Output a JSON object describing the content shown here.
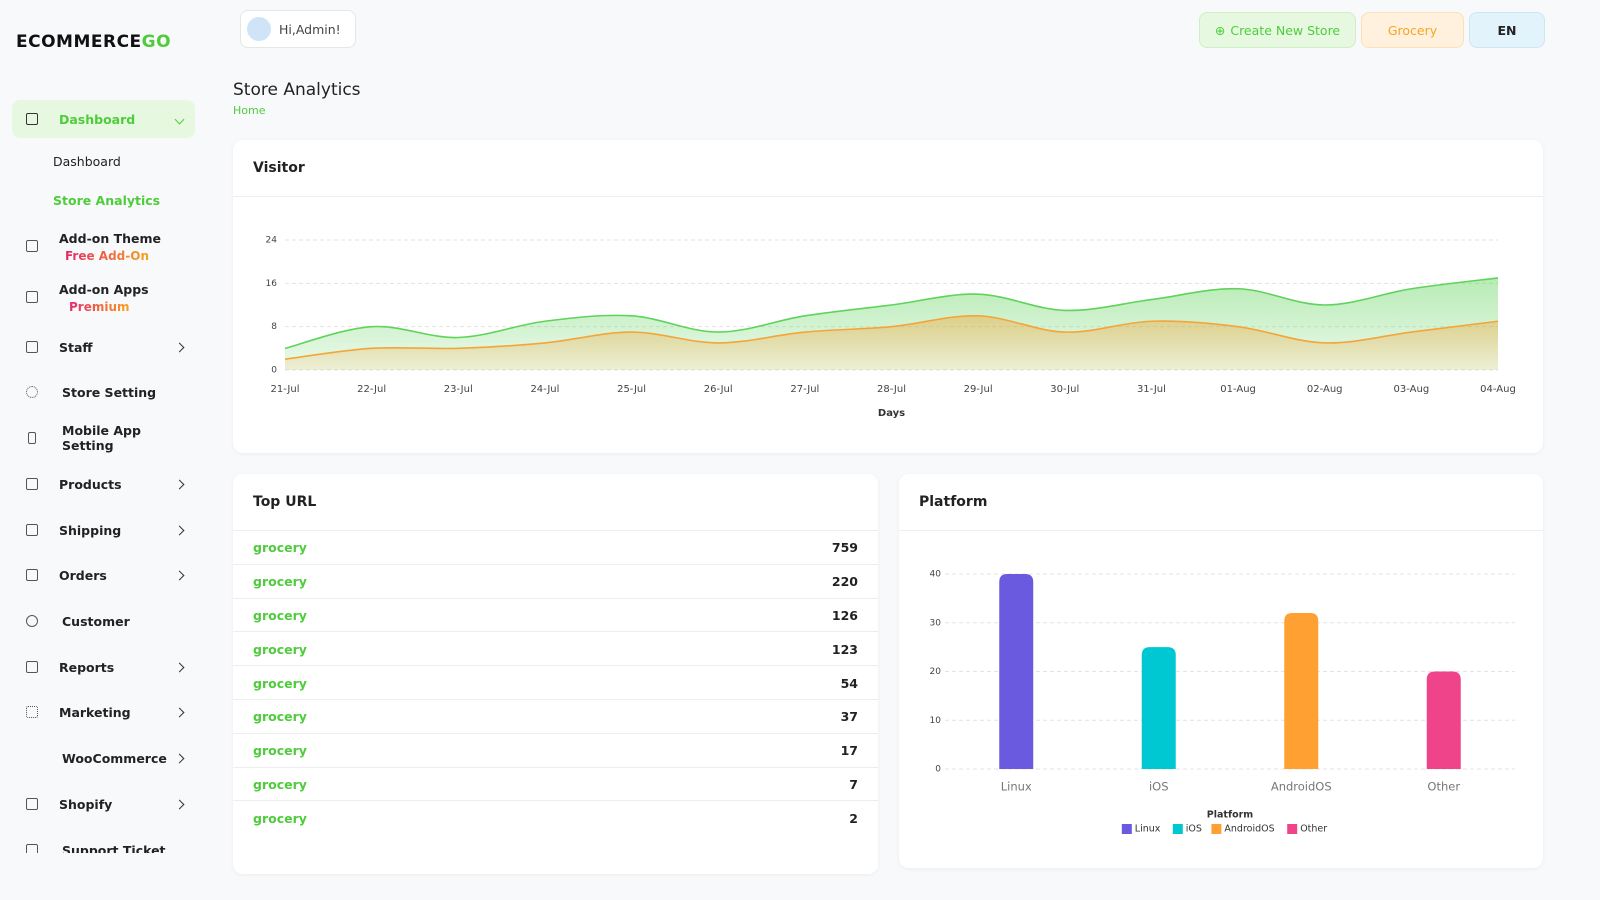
{
  "logo": {
    "main": "ECOMMERCE",
    "accent": "GO"
  },
  "header": {
    "greeting": "Hi,Admin!",
    "create_store": "Create New Store",
    "store": "Grocery",
    "language": "EN"
  },
  "page": {
    "title": "Store Analytics",
    "breadcrumb": "Home"
  },
  "sidebar": {
    "menu": [
      {
        "label": "Dashboard",
        "children": [
          "Dashboard",
          "Store Analytics"
        ]
      },
      {
        "label": "Add-on Theme",
        "badge": "Free Add-On"
      },
      {
        "label": "Add-on Apps",
        "badge": "Premium"
      },
      {
        "label": "Staff"
      },
      {
        "label": "Store Setting"
      },
      {
        "label": "Mobile App Setting"
      },
      {
        "label": "Products"
      },
      {
        "label": "Shipping"
      },
      {
        "label": "Orders"
      },
      {
        "label": "Customer"
      },
      {
        "label": "Reports"
      },
      {
        "label": "Marketing"
      },
      {
        "label": "WooCommerce"
      },
      {
        "label": "Shopify"
      },
      {
        "label": "Support Ticket"
      }
    ]
  },
  "top_url": {
    "title": "Top URL",
    "rows": [
      {
        "url": "grocery",
        "count": 759
      },
      {
        "url": "grocery",
        "count": 220
      },
      {
        "url": "grocery",
        "count": 126
      },
      {
        "url": "grocery",
        "count": 123
      },
      {
        "url": "grocery",
        "count": 54
      },
      {
        "url": "grocery",
        "count": 37
      },
      {
        "url": "grocery",
        "count": 17
      },
      {
        "url": "grocery",
        "count": 7
      },
      {
        "url": "grocery",
        "count": 2
      }
    ]
  },
  "chart_data": [
    {
      "type": "area",
      "title": "Visitor",
      "x_label": "Days",
      "categories": [
        "21-Jul",
        "22-Jul",
        "23-Jul",
        "24-Jul",
        "25-Jul",
        "26-Jul",
        "27-Jul",
        "28-Jul",
        "29-Jul",
        "30-Jul",
        "31-Jul",
        "01-Aug",
        "02-Aug",
        "03-Aug",
        "04-Aug"
      ],
      "series": [
        {
          "color": "#5fd35a",
          "values": [
            4,
            8,
            6,
            9,
            10,
            7,
            10,
            12,
            14,
            11,
            13,
            15,
            12,
            15,
            17
          ]
        },
        {
          "color": "#f4a53a",
          "values": [
            2,
            4,
            4,
            5,
            7,
            5,
            7,
            8,
            10,
            7,
            9,
            8,
            5,
            7,
            9
          ]
        }
      ],
      "ylim": [
        0,
        24
      ],
      "yticks": [
        0,
        8,
        16,
        24
      ],
      "grid": true
    },
    {
      "type": "bar",
      "title": "Platform",
      "legend_title": "Platform",
      "categories": [
        "Linux",
        "iOS",
        "AndroidOS",
        "Other"
      ],
      "values": [
        40,
        25,
        32,
        20
      ],
      "colors": [
        "#6a5ae0",
        "#00c8d2",
        "#ffa033",
        "#f0448a"
      ],
      "ylim": [
        0,
        40
      ],
      "yticks": [
        0,
        10,
        20,
        30,
        40
      ],
      "grid": true
    }
  ]
}
